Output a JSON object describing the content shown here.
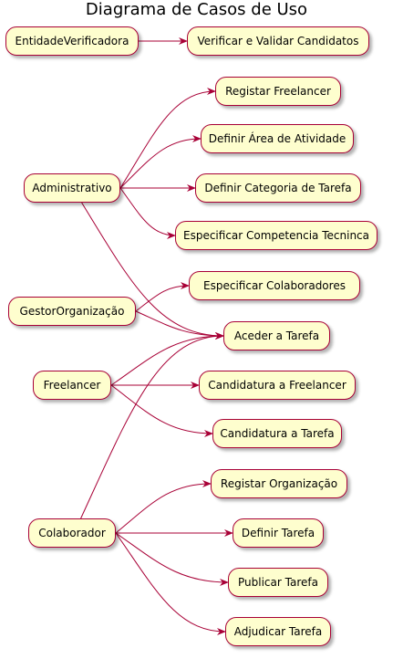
{
  "title": "Diagrama de Casos de Uso",
  "colors": {
    "node_fill": "#fefece",
    "node_border": "#a80036",
    "edge": "#a80036"
  },
  "actors": {
    "entidade": "EntidadeVerificadora",
    "administrativo": "Administrativo",
    "gestor": "GestorOrganização",
    "freelancer": "Freelancer",
    "colaborador": "Colaborador"
  },
  "usecases": {
    "verificar": "Verificar e Validar Candidatos",
    "registar_freelancer": "Registar Freelancer",
    "definir_area": "Definir Área de Atividade",
    "definir_categoria": "Definir Categoria de Tarefa",
    "especificar_competencia": "Especificar Competencia Tecninca",
    "especificar_colaboradores": "Especificar Colaboradores",
    "aceder_tarefa": "Aceder a Tarefa",
    "candidatura_freelancer": "Candidatura a Freelancer",
    "candidatura_tarefa": "Candidatura a Tarefa",
    "registar_organizacao": "Registar Organização",
    "definir_tarefa": "Definir Tarefa",
    "publicar_tarefa": "Publicar Tarefa",
    "adjudicar_tarefa": "Adjudicar Tarefa"
  },
  "edges": [
    [
      "entidade",
      "verificar"
    ],
    [
      "administrativo",
      "registar_freelancer"
    ],
    [
      "administrativo",
      "definir_area"
    ],
    [
      "administrativo",
      "definir_categoria"
    ],
    [
      "administrativo",
      "especificar_competencia"
    ],
    [
      "administrativo",
      "aceder_tarefa"
    ],
    [
      "gestor",
      "especificar_colaboradores"
    ],
    [
      "gestor",
      "aceder_tarefa"
    ],
    [
      "freelancer",
      "aceder_tarefa"
    ],
    [
      "freelancer",
      "candidatura_freelancer"
    ],
    [
      "freelancer",
      "candidatura_tarefa"
    ],
    [
      "colaborador",
      "aceder_tarefa"
    ],
    [
      "colaborador",
      "registar_organizacao"
    ],
    [
      "colaborador",
      "definir_tarefa"
    ],
    [
      "colaborador",
      "publicar_tarefa"
    ],
    [
      "colaborador",
      "adjudicar_tarefa"
    ]
  ]
}
